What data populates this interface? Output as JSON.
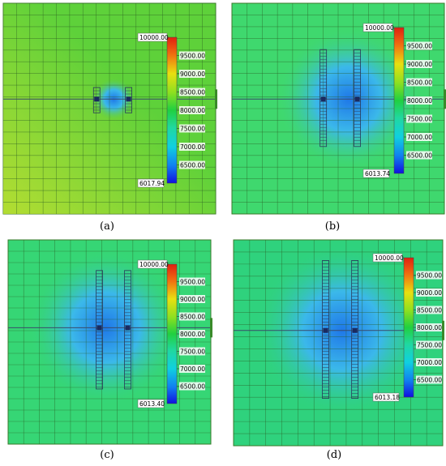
{
  "figure": {
    "panels": [
      {
        "id": "a",
        "caption": "(a)",
        "max_label": "10000.00",
        "min_label": "6017.94",
        "ticks": [
          "9500.00",
          "9000.00",
          "8500.00",
          "8000.00",
          "7500.00",
          "7000.00",
          "6500.00"
        ],
        "wells_present": true,
        "base_color": "#5ed13a"
      },
      {
        "id": "b",
        "caption": "(b)",
        "max_label": "10000.00",
        "min_label": "6013.74",
        "ticks": [
          "9500.00",
          "9000.00",
          "8500.00",
          "8000.00",
          "7500.00",
          "7000.00",
          "6500.00"
        ],
        "wells_present": true,
        "base_color": "#3fd86e"
      },
      {
        "id": "c",
        "caption": "(c)",
        "max_label": "10000.00",
        "min_label": "6013.40",
        "ticks": [
          "9500.00",
          "9000.00",
          "8500.00",
          "8000.00",
          "7500.00",
          "7000.00",
          "6500.00"
        ],
        "wells_present": true,
        "base_color": "#36d675"
      },
      {
        "id": "d",
        "caption": "(d)",
        "max_label": "10000.00",
        "min_label": "6013.18",
        "ticks": [
          "9500.00",
          "9000.00",
          "8500.00",
          "8000.00",
          "7500.00",
          "7000.00",
          "6500.00"
        ],
        "wells_present": true,
        "base_color": "#2fd27d"
      }
    ]
  }
}
